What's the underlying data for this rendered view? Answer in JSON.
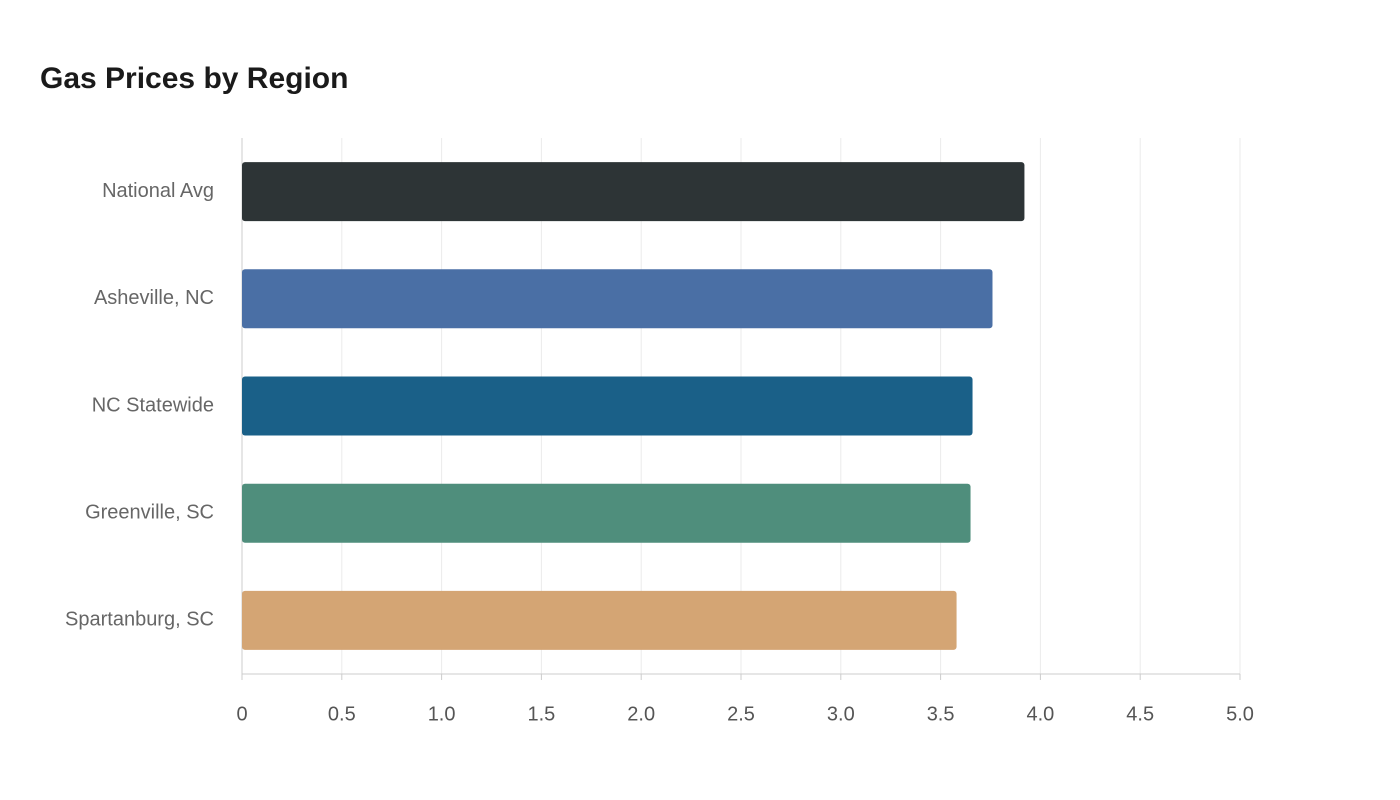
{
  "chart_data": {
    "type": "bar",
    "orientation": "horizontal",
    "title": "Gas Prices by Region",
    "categories": [
      "National Avg",
      "Asheville, NC",
      "NC Statewide",
      "Greenville, SC",
      "Spartanburg, SC"
    ],
    "values": [
      3.92,
      3.76,
      3.66,
      3.65,
      3.58
    ],
    "colors": [
      "#2d3436",
      "#4a6fa5",
      "#1a6088",
      "#4f8e7c",
      "#d4a574"
    ],
    "xlim": [
      0,
      5
    ],
    "xticks": [
      0,
      0.5,
      {
        "value": 1,
        "label": "1.0"
      },
      1.5,
      {
        "value": 2,
        "label": "2.0"
      },
      2.5,
      {
        "value": 3,
        "label": "3.0"
      },
      3.5,
      {
        "value": 4,
        "label": "4.0"
      },
      4.5,
      {
        "value": 5,
        "label": "5.0"
      }
    ],
    "grid": true
  }
}
